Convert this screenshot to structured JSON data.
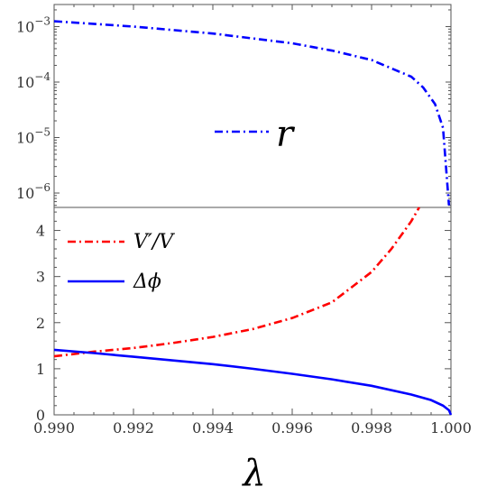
{
  "chart_data": [
    {
      "type": "line",
      "panel": "top",
      "yscale": "log",
      "xlim": [
        0.99,
        1.0
      ],
      "ylim": [
        5.5e-07,
        0.0025
      ],
      "ytick_labels": [
        {
          "value": 0.001,
          "mantissa": "10",
          "exp": "−3"
        },
        {
          "value": 0.0001,
          "mantissa": "10",
          "exp": "−4"
        },
        {
          "value": 1e-05,
          "mantissa": "10",
          "exp": "−5"
        },
        {
          "value": 1e-06,
          "mantissa": "10",
          "exp": "−6"
        }
      ],
      "legend_position": "center",
      "series": [
        {
          "name": "r",
          "color": "#0000ff",
          "dash": "dashdot",
          "x": [
            0.99,
            0.992,
            0.994,
            0.996,
            0.997,
            0.998,
            0.999,
            0.9993,
            0.9996,
            0.9998,
            0.99995
          ],
          "y": [
            0.00125,
            0.001,
            0.00075,
            0.0005,
            0.00037,
            0.00025,
            0.000125,
            8e-05,
            4e-05,
            1.5e-05,
            6e-07
          ]
        }
      ]
    },
    {
      "type": "line",
      "panel": "bottom",
      "xlim": [
        0.99,
        1.0
      ],
      "ylim": [
        0,
        4.5
      ],
      "xlabel": "λ",
      "xtick_labels": [
        "0.990",
        "0.992",
        "0.994",
        "0.996",
        "0.998",
        "1.000"
      ],
      "xticks": [
        0.99,
        0.992,
        0.994,
        0.996,
        0.998,
        1.0
      ],
      "ytick_labels": [
        "0",
        "1",
        "2",
        "3",
        "4"
      ],
      "yticks": [
        0,
        1,
        2,
        3,
        4
      ],
      "legend_position": "top-left",
      "series": [
        {
          "name": "V′/V",
          "color": "#ff0000",
          "dash": "dashdot",
          "x": [
            0.99,
            0.991,
            0.992,
            0.993,
            0.994,
            0.995,
            0.996,
            0.997,
            0.998,
            0.9985,
            0.999,
            0.9992
          ],
          "y": [
            1.27,
            1.37,
            1.45,
            1.56,
            1.69,
            1.86,
            2.1,
            2.44,
            3.1,
            3.6,
            4.2,
            4.5
          ]
        },
        {
          "name": "Δϕ",
          "color": "#0000ff",
          "dash": "solid",
          "x": [
            0.99,
            0.991,
            0.992,
            0.993,
            0.994,
            0.995,
            0.996,
            0.997,
            0.998,
            0.999,
            0.9995,
            0.9998,
            0.99995,
            1.0
          ],
          "y": [
            1.41,
            1.34,
            1.26,
            1.18,
            1.1,
            1.0,
            0.89,
            0.77,
            0.63,
            0.44,
            0.32,
            0.2,
            0.1,
            0.0
          ]
        }
      ]
    }
  ]
}
